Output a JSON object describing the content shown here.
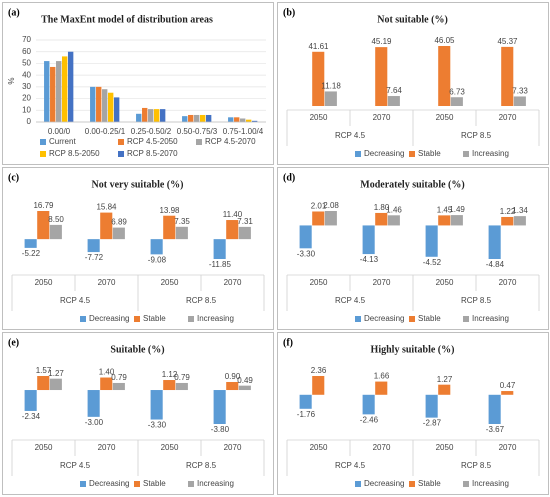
{
  "chart_data": [
    {
      "type": "bar",
      "panel": "(a)",
      "title": "The MaxEnt model of distribution areas",
      "y_label": "%",
      "categories": [
        "0.00/0",
        "0.00-0.25/1",
        "0.25-0.50/2",
        "0.50-0.75/3",
        "0.75-1.00/4"
      ],
      "series": [
        {
          "name": "Current",
          "color": "#5b9bd5",
          "values": [
            52,
            30,
            7,
            5,
            4
          ]
        },
        {
          "name": "RCP 4.5-2050",
          "color": "#ed7d31",
          "values": [
            47,
            30,
            12,
            6,
            4
          ]
        },
        {
          "name": "RCP 4.5-2070",
          "color": "#a5a5a5",
          "values": [
            52,
            28,
            11,
            6,
            3
          ]
        },
        {
          "name": "RCP 8.5-2050",
          "color": "#ffc000",
          "values": [
            56,
            25,
            11,
            6,
            2
          ]
        },
        {
          "name": "RCP 8.5-2070",
          "color": "#4472c4",
          "values": [
            60,
            21,
            11,
            6,
            1
          ]
        }
      ],
      "ylim": [
        0,
        70
      ],
      "yticks": [
        0,
        10,
        20,
        30,
        40,
        50,
        60,
        70
      ],
      "grid": true
    },
    {
      "type": "change",
      "panel": "(b)",
      "title": "Not suitable (%)",
      "categories": [
        "2050",
        "2070",
        "2050",
        "2070"
      ],
      "groups": [
        "RCP 4.5",
        "RCP 8.5"
      ],
      "series": [
        {
          "name": "Decreasing",
          "color": "#5b9bd5",
          "values": [
            null,
            null,
            null,
            null
          ],
          "value_labels": [
            null,
            null,
            null,
            null
          ]
        },
        {
          "name": "Stable",
          "color": "#ed7d31",
          "values": [
            41.61,
            45.19,
            46.05,
            45.37
          ],
          "value_labels": [
            "41.61",
            "45.19",
            "46.05",
            "45.37"
          ]
        },
        {
          "name": "Increasing",
          "color": "#a5a5a5",
          "values": [
            11.18,
            7.64,
            6.73,
            7.33
          ],
          "value_labels": [
            "11.18",
            "7.64",
            "6.73",
            "7.33"
          ]
        }
      ]
    },
    {
      "type": "change",
      "panel": "(c)",
      "title": "Not very suitable (%)",
      "categories": [
        "2050",
        "2070",
        "2050",
        "2070"
      ],
      "groups": [
        "RCP 4.5",
        "RCP 8.5"
      ],
      "series": [
        {
          "name": "Decreasing",
          "color": "#5b9bd5",
          "values": [
            -5.22,
            -7.72,
            -9.08,
            -11.85
          ],
          "value_labels": [
            "-5.22",
            "-7.72",
            "-9.08",
            "-11.85"
          ]
        },
        {
          "name": "Stable",
          "color": "#ed7d31",
          "values": [
            16.79,
            15.84,
            13.98,
            11.4
          ],
          "value_labels": [
            "16.79",
            "15.84",
            "13.98",
            "11.40"
          ]
        },
        {
          "name": "Increasing",
          "color": "#a5a5a5",
          "values": [
            8.5,
            6.89,
            7.35,
            7.31
          ],
          "value_labels": [
            "8.50",
            "6.89",
            "7.35",
            "7.31"
          ]
        }
      ]
    },
    {
      "type": "change",
      "panel": "(d)",
      "title": "Moderately suitable (%)",
      "categories": [
        "2050",
        "2070",
        "2050",
        "2070"
      ],
      "groups": [
        "RCP 4.5",
        "RCP 8.5"
      ],
      "series": [
        {
          "name": "Decreasing",
          "color": "#5b9bd5",
          "values": [
            -3.3,
            -4.13,
            -4.52,
            -4.84
          ],
          "value_labels": [
            "-3.30",
            "-4.13",
            "-4.52",
            "-4.84"
          ]
        },
        {
          "name": "Stable",
          "color": "#ed7d31",
          "values": [
            2.01,
            1.8,
            1.45,
            1.22
          ],
          "value_labels": [
            "2.01",
            "1.80",
            "1.45",
            "1.22"
          ]
        },
        {
          "name": "Increasing",
          "color": "#a5a5a5",
          "values": [
            2.08,
            1.46,
            1.49,
            1.34
          ],
          "value_labels": [
            "2.08",
            "1.46",
            "1.49",
            "1.34"
          ]
        }
      ]
    },
    {
      "type": "change",
      "panel": "(e)",
      "title": "Suitable (%)",
      "categories": [
        "2050",
        "2070",
        "2050",
        "2070"
      ],
      "groups": [
        "RCP 4.5",
        "RCP 8.5"
      ],
      "series": [
        {
          "name": "Decreasing",
          "color": "#5b9bd5",
          "values": [
            -2.34,
            -3.0,
            -3.3,
            -3.8
          ],
          "value_labels": [
            "-2.34",
            "-3.00",
            "-3.30",
            "-3.80"
          ]
        },
        {
          "name": "Stable",
          "color": "#ed7d31",
          "values": [
            1.57,
            1.4,
            1.12,
            0.9
          ],
          "value_labels": [
            "1.57",
            "1.40",
            "1.12",
            "0.90"
          ]
        },
        {
          "name": "Increasing",
          "color": "#a5a5a5",
          "values": [
            1.27,
            0.79,
            0.79,
            0.49
          ],
          "value_labels": [
            "1.27",
            "0.79",
            "0.79",
            "0.49"
          ]
        }
      ]
    },
    {
      "type": "change",
      "panel": "(f)",
      "title": "Highly suitable (%)",
      "categories": [
        "2050",
        "2070",
        "2050",
        "2070"
      ],
      "groups": [
        "RCP 4.5",
        "RCP 8.5"
      ],
      "series": [
        {
          "name": "Decreasing",
          "color": "#5b9bd5",
          "values": [
            -1.76,
            -2.46,
            -2.87,
            -3.67
          ],
          "value_labels": [
            "-1.76",
            "-2.46",
            "-2.87",
            "-3.67"
          ]
        },
        {
          "name": "Stable",
          "color": "#ed7d31",
          "values": [
            2.36,
            1.66,
            1.27,
            0.47
          ],
          "value_labels": [
            "2.36",
            "1.66",
            "1.27",
            "0.47"
          ]
        },
        {
          "name": "Increasing",
          "color": "#a5a5a5",
          "values": [
            null,
            null,
            null,
            null
          ],
          "value_labels": [
            null,
            null,
            null,
            null
          ]
        }
      ]
    }
  ]
}
